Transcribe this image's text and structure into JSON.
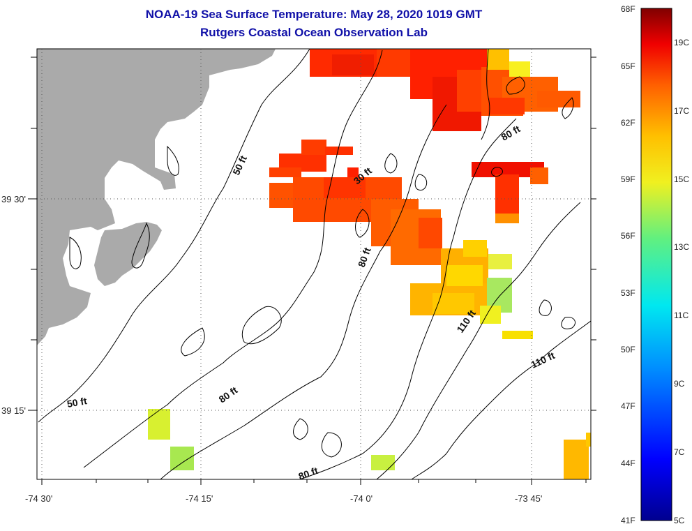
{
  "title": "NOAA-19 Sea Surface Temperature:  May 28, 2020 1019 GMT",
  "subtitle": "Rutgers Coastal Ocean Observation Lab",
  "lon_ticks": [
    "-74 30'",
    "-74 15'",
    "-74 0'",
    "-73 45'"
  ],
  "lat_ticks": [
    "39 30'",
    "39 15'"
  ],
  "contour_labels": [
    "50 ft",
    "30 ft",
    "80 ft",
    "80 ft",
    "110 ft",
    "110 ft",
    "80 ft",
    "50 ft",
    "80 ft"
  ],
  "colorbar": {
    "f_labels": [
      "68F",
      "65F",
      "62F",
      "59F",
      "56F",
      "53F",
      "50F",
      "47F",
      "44F",
      "41F"
    ],
    "c_labels": [
      "19C",
      "17C",
      "15C",
      "13C",
      "11C",
      "9C",
      "7C",
      "5C"
    ],
    "min_c": 5,
    "max_c": 20
  },
  "colors": {
    "land": "#aaaaaa",
    "text_title": "#1010a8"
  }
}
